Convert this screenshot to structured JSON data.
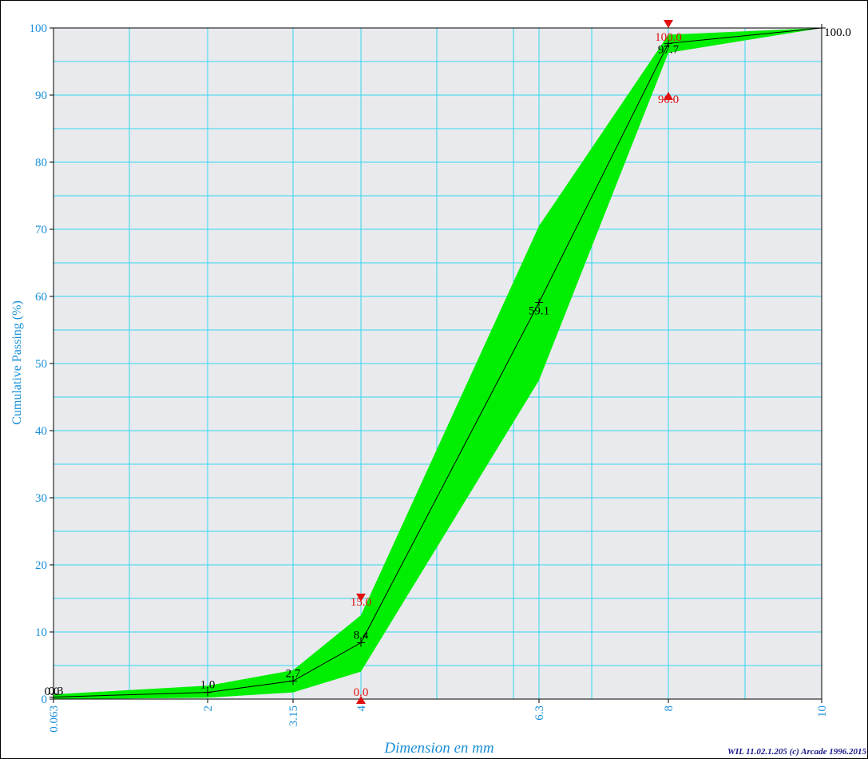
{
  "chart_data": {
    "type": "area",
    "title": "",
    "xlabel": "Dimension en mm",
    "ylabel": "Cumulative Passing (%)",
    "credit": "WIL 11.02.1.205 (c) Arcade 1996.2015",
    "ylim": [
      0,
      100
    ],
    "yticks": [
      0,
      10,
      20,
      30,
      40,
      50,
      60,
      70,
      80,
      90,
      100
    ],
    "xticks": [
      {
        "value": 0.063,
        "label": "0.063"
      },
      {
        "value": 2,
        "label": "2"
      },
      {
        "value": 3.15,
        "label": "3.15"
      },
      {
        "value": 4,
        "label": "4"
      },
      {
        "value": 6.3,
        "label": "6.3"
      },
      {
        "value": 8,
        "label": "8"
      },
      {
        "value": 10,
        "label": "10"
      }
    ],
    "grid": true,
    "curve": {
      "sieves": [
        0.063,
        2,
        3.15,
        4,
        6.3,
        8,
        10
      ],
      "values": [
        0.3,
        1.0,
        2.7,
        8.4,
        59.1,
        97.7,
        100.0
      ],
      "labels": [
        "0.3",
        "1.0",
        "2.7",
        "8.4",
        "59.1",
        "97.7",
        "100.0"
      ],
      "zero_label": "0.0"
    },
    "envelope": {
      "color": "#00ee00",
      "upper": [
        0.7,
        2.0,
        4.3,
        12.5,
        70.5,
        99.0,
        100.0
      ],
      "lower": [
        0.0,
        0.2,
        1.0,
        4.1,
        47.5,
        96.3,
        100.0
      ]
    },
    "spec_limits": [
      {
        "sieve": 4,
        "value": 15.0,
        "label": "15.0",
        "kind": "max"
      },
      {
        "sieve": 4,
        "value": 0.0,
        "label": "0.0",
        "kind": "min"
      },
      {
        "sieve": 8,
        "value": 100.0,
        "label": "100.0",
        "kind": "max"
      },
      {
        "sieve": 8,
        "value": 90.0,
        "label": "90.0",
        "kind": "min"
      }
    ],
    "colors": {
      "axis_text": "#1a8fd8",
      "grid": "#33d6ee",
      "plot_bg": "#e8eaee",
      "spec": "#e01010",
      "curve": "#000000"
    }
  }
}
